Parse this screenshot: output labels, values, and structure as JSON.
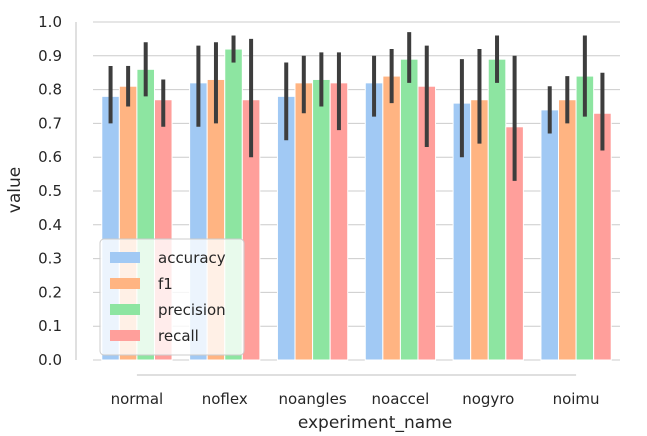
{
  "chart_data": {
    "type": "bar",
    "title": "",
    "xlabel": "experiment_name",
    "ylabel": "value",
    "ylim": [
      0.0,
      1.0
    ],
    "yticks": [
      "0.0",
      "0.1",
      "0.2",
      "0.3",
      "0.4",
      "0.5",
      "0.6",
      "0.7",
      "0.8",
      "0.9",
      "1.0"
    ],
    "grid": "horizontal",
    "legend_position": "bottom-left",
    "categories": [
      "normal",
      "noflex",
      "noangles",
      "noaccel",
      "nogyro",
      "noimu"
    ],
    "series": [
      {
        "name": "accuracy",
        "color": "#a1c9f4",
        "values": [
          0.78,
          0.82,
          0.78,
          0.82,
          0.76,
          0.74
        ],
        "err_low": [
          0.7,
          0.69,
          0.65,
          0.72,
          0.6,
          0.67
        ],
        "err_high": [
          0.87,
          0.93,
          0.88,
          0.9,
          0.89,
          0.81
        ]
      },
      {
        "name": "f1",
        "color": "#ffb482",
        "values": [
          0.81,
          0.83,
          0.82,
          0.84,
          0.77,
          0.77
        ],
        "err_low": [
          0.75,
          0.7,
          0.73,
          0.76,
          0.64,
          0.7
        ],
        "err_high": [
          0.87,
          0.94,
          0.9,
          0.92,
          0.92,
          0.84
        ]
      },
      {
        "name": "precision",
        "color": "#8de5a1",
        "values": [
          0.86,
          0.92,
          0.83,
          0.89,
          0.89,
          0.84
        ],
        "err_low": [
          0.78,
          0.88,
          0.75,
          0.82,
          0.82,
          0.72
        ],
        "err_high": [
          0.94,
          0.96,
          0.91,
          0.97,
          0.96,
          0.96
        ]
      },
      {
        "name": "recall",
        "color": "#ff9f9b",
        "values": [
          0.77,
          0.77,
          0.82,
          0.81,
          0.69,
          0.73
        ],
        "err_low": [
          0.69,
          0.6,
          0.68,
          0.63,
          0.53,
          0.62
        ],
        "err_high": [
          0.83,
          0.95,
          0.91,
          0.93,
          0.9,
          0.85
        ]
      }
    ]
  }
}
